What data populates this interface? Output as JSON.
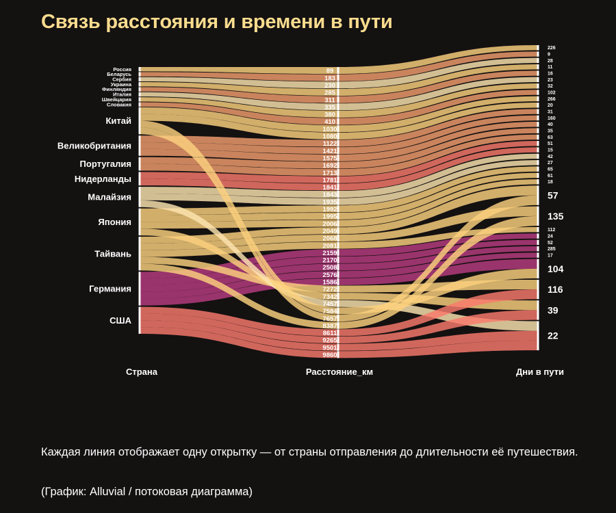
{
  "title": "Связь расстояния и времени в пути",
  "caption": "Каждая линия отображает одну открытку — от страны отправления до длительности её путешествия.",
  "credit": "(График: Alluvial / потоковая диаграмма)",
  "colors": {
    "background": "#141111",
    "title": "#f9dc8e",
    "palette": [
      "#fa7a6c",
      "#fbd17e",
      "#f29e6e",
      "#b83c80",
      "#fde4b0",
      "#e8608a"
    ]
  },
  "chart_data": {
    "type": "alluvial",
    "axes": [
      "Страна",
      "Расстояние_км",
      "Дни в пути"
    ],
    "flows": [
      {
        "country": "Россия",
        "km": 89,
        "days": 226
      },
      {
        "country": "Беларусь",
        "km": 183,
        "days": 9
      },
      {
        "country": "Сербия",
        "km": 230,
        "days": 28
      },
      {
        "country": "Украина",
        "km": 285,
        "days": 11
      },
      {
        "country": "Финляндия",
        "km": 311,
        "days": 16
      },
      {
        "country": "Италия",
        "km": 335,
        "days": 23
      },
      {
        "country": "Швейцария",
        "km": 380,
        "days": 32
      },
      {
        "country": "Словакия",
        "km": 410,
        "days": 102
      },
      {
        "country": "Китай",
        "km": 1030,
        "days": 266
      },
      {
        "country": "Китай",
        "km": 1080,
        "days": 20
      },
      {
        "country": "Великобритания",
        "km": 1122,
        "days": 31
      },
      {
        "country": "Великобритания",
        "km": 1421,
        "days": 160
      },
      {
        "country": "Великобритания",
        "km": 1575,
        "days": 40
      },
      {
        "country": "Португалия",
        "km": 1692,
        "days": 35
      },
      {
        "country": "Португалия",
        "km": 1713,
        "days": 63
      },
      {
        "country": "Нидерланды",
        "km": 1781,
        "days": 51
      },
      {
        "country": "Нидерланды",
        "km": 1841,
        "days": 15
      },
      {
        "country": "Малайзия",
        "km": 1843,
        "days": 42
      },
      {
        "country": "Малайзия",
        "km": 1935,
        "days": 27
      },
      {
        "country": "Япония",
        "km": 1992,
        "days": 65
      },
      {
        "country": "Япония",
        "km": 1995,
        "days": 61
      },
      {
        "country": "Япония",
        "km": 2006,
        "days": 18
      },
      {
        "country": "Тайвань",
        "km": 2049,
        "days": 57
      },
      {
        "country": "Тайвань",
        "km": 2068,
        "days": 135
      },
      {
        "country": "Тайвань",
        "km": 2081,
        "days": 112
      },
      {
        "country": "Германия",
        "km": 2159,
        "days": 24
      },
      {
        "country": "Германия",
        "km": 2170,
        "days": 52
      },
      {
        "country": "Германия",
        "km": 2508,
        "days": 285
      },
      {
        "country": "Германия",
        "km": 2576,
        "days": 17
      },
      {
        "country": "Германия",
        "km": 1586,
        "days": 104
      },
      {
        "country": "Тайвань",
        "km": 7272,
        "days": 116
      },
      {
        "country": "Япония",
        "km": 7342,
        "days": 39
      },
      {
        "country": "Малайзия",
        "km": 7457,
        "days": 22
      },
      {
        "country": "Китай",
        "km": 7584,
        "days": 104
      },
      {
        "country": "Китай",
        "km": 7657,
        "days": 57
      },
      {
        "country": "Тайвань",
        "km": 8387,
        "days": 135
      },
      {
        "country": "США",
        "km": 8611,
        "days": 116
      },
      {
        "country": "США",
        "km": 9265,
        "days": 39
      },
      {
        "country": "США",
        "km": 9501,
        "days": 22
      },
      {
        "country": "США",
        "km": 9860,
        "days": 22
      }
    ]
  }
}
